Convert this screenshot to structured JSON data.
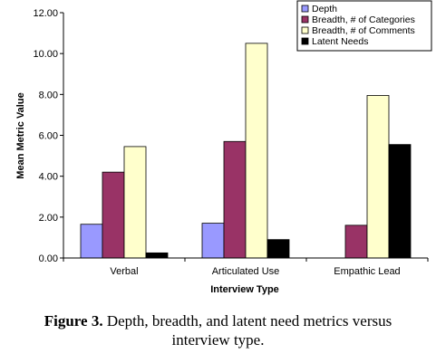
{
  "chart_data": {
    "type": "bar",
    "categories": [
      "Verbal",
      "Articulated Use",
      "Empathic Lead"
    ],
    "series": [
      {
        "name": "Depth",
        "color": "#9999FF",
        "values": [
          1.65,
          1.7,
          0
        ]
      },
      {
        "name": "Breadth, # of Categories",
        "color": "#993366",
        "values": [
          4.2,
          5.7,
          1.6
        ]
      },
      {
        "name": "Breadth, # of Comments",
        "color": "#FFFFCC",
        "values": [
          5.45,
          10.5,
          7.95
        ]
      },
      {
        "name": "Latent Needs",
        "color": "#000000",
        "values": [
          0.25,
          0.9,
          5.55
        ]
      }
    ],
    "xlabel": "Interview Type",
    "ylabel": "Mean Metric Value",
    "ylim": [
      0,
      12
    ],
    "yticks": [
      "0.00",
      "2.00",
      "4.00",
      "6.00",
      "8.00",
      "10.00",
      "12.00"
    ],
    "grid": false,
    "legend_position": "top-right"
  },
  "caption": {
    "label": "Figure 3.",
    "line1": "Depth, breadth, and latent need metrics versus",
    "line2": "interview type."
  }
}
